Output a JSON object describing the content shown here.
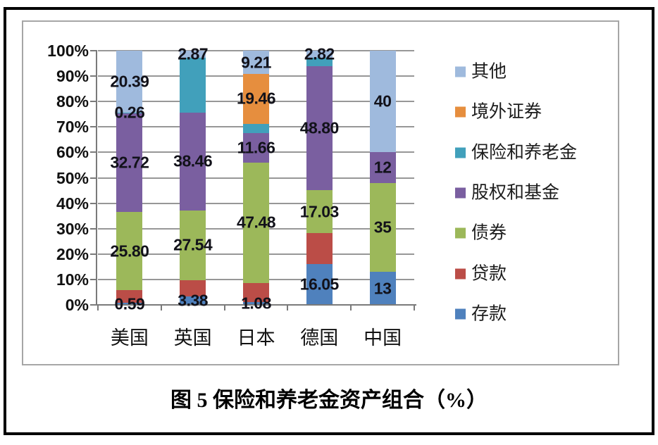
{
  "figure": {
    "caption": "图 5 保险和养老金资产组合（%）"
  },
  "chart_data": {
    "type": "bar",
    "subtype": "100%-stacked-column",
    "title": "图 5 保险和养老金资产组合（%）",
    "categories": [
      "美国",
      "英国",
      "日本",
      "德国",
      "中国"
    ],
    "y_axis": {
      "ticks_bottom_to_top": [
        "0%",
        "10%",
        "20%",
        "30%",
        "40%",
        "50%",
        "60%",
        "70%",
        "80%",
        "90%",
        "100%"
      ],
      "min": 0,
      "max": 100,
      "grid": true
    },
    "legend": {
      "position": "right",
      "items_top_to_bottom": [
        "其他",
        "境外证券",
        "保险和养老金",
        "股权和基金",
        "债券",
        "贷款",
        "存款"
      ]
    },
    "series_bottom_to_top": [
      {
        "name": "存款",
        "color": "#4f81bd",
        "values": [
          0.59,
          3.38,
          1.08,
          16.05,
          13
        ],
        "data_labels": [
          "0.59",
          "3.38",
          "1.08",
          "16.05",
          "13"
        ]
      },
      {
        "name": "贷款",
        "color": "#bb4d47",
        "values": [
          4.3,
          6.3,
          7.5,
          12.12,
          0
        ],
        "data_labels": [
          "",
          "",
          "",
          "",
          ""
        ]
      },
      {
        "name": "债券",
        "color": "#9cb85a",
        "values": [
          25.8,
          27.54,
          47.48,
          17.03,
          35
        ],
        "data_labels": [
          "25.80",
          "27.54",
          "47.48",
          "17.03",
          "35"
        ]
      },
      {
        "name": "股权和基金",
        "color": "#7a5fa0",
        "values": [
          32.72,
          38.46,
          11.66,
          48.8,
          12
        ],
        "data_labels": [
          "32.72",
          "38.46",
          "11.66",
          "48.80",
          "12"
        ]
      },
      {
        "name": "保险和养老金",
        "color": "#41a0bb",
        "values": [
          0.26,
          21.45,
          3.61,
          3.18,
          0
        ],
        "data_labels": [
          "0.26",
          "",
          "",
          "",
          ""
        ]
      },
      {
        "name": "境外证券",
        "color": "#e68e3e",
        "values": [
          0,
          0,
          19.46,
          0,
          0
        ],
        "data_labels": [
          "",
          "",
          "19.46",
          "",
          ""
        ]
      },
      {
        "name": "其他",
        "color": "#9fbadd",
        "values": [
          20.39,
          2.87,
          9.21,
          2.82,
          40
        ],
        "data_labels": [
          "20.39",
          "2.87",
          "9.21",
          "2.82",
          "40"
        ]
      }
    ]
  }
}
